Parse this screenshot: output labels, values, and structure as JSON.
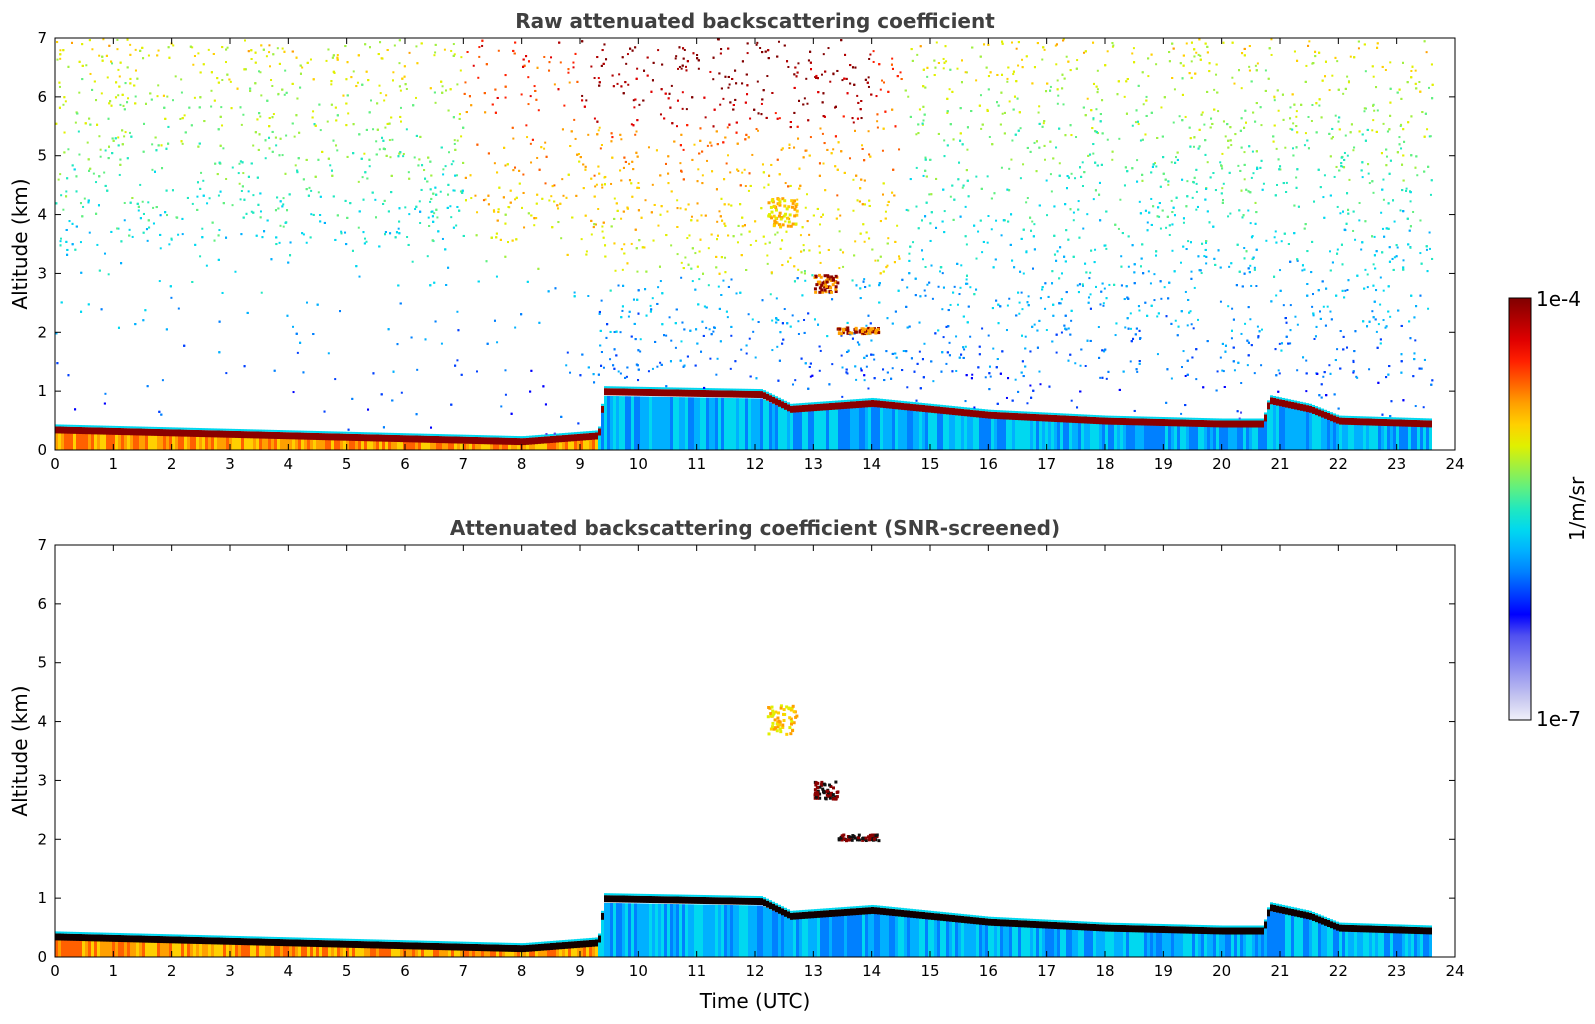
{
  "chart_data": [
    {
      "type": "heatmap",
      "title": "Raw attenuated backscattering coefficient",
      "xlabel": "",
      "ylabel": "Altitude (km)",
      "xlim": [
        0,
        24
      ],
      "ylim": [
        0,
        7
      ],
      "x_ticks": [
        "0",
        "1",
        "2",
        "3",
        "4",
        "5",
        "6",
        "7",
        "8",
        "9",
        "10",
        "11",
        "12",
        "13",
        "14",
        "15",
        "16",
        "17",
        "18",
        "19",
        "20",
        "21",
        "22",
        "23",
        "24"
      ],
      "y_ticks": [
        "0",
        "1",
        "2",
        "3",
        "4",
        "5",
        "6",
        "7"
      ],
      "data_end_hour": 23.6,
      "layers": [
        {
          "name": "boundary-layer-top",
          "points": [
            [
              0,
              0.35
            ],
            [
              2,
              0.3
            ],
            [
              4,
              0.25
            ],
            [
              6,
              0.2
            ],
            [
              8,
              0.15
            ],
            [
              9.3,
              0.25
            ],
            [
              9.4,
              1.0
            ],
            [
              12.1,
              0.95
            ],
            [
              12.6,
              0.7
            ],
            [
              14,
              0.8
            ],
            [
              16,
              0.6
            ],
            [
              18,
              0.5
            ],
            [
              20,
              0.45
            ],
            [
              20.7,
              0.45
            ],
            [
              20.8,
              0.85
            ],
            [
              21.5,
              0.7
            ],
            [
              22,
              0.5
            ],
            [
              23.6,
              0.45
            ]
          ]
        },
        {
          "name": "cloud-4km",
          "x": [
            12.2,
            12.7
          ],
          "y": [
            3.8,
            4.3
          ]
        },
        {
          "name": "cloud-3km",
          "x": [
            13.0,
            13.4
          ],
          "y": [
            2.7,
            3.0
          ]
        },
        {
          "name": "cloud-2km",
          "x": [
            13.4,
            14.1
          ],
          "y": [
            2.0,
            2.1
          ]
        }
      ]
    },
    {
      "type": "heatmap",
      "title": "Attenuated backscattering coefficient (SNR-screened)",
      "xlabel": "Time (UTC)",
      "ylabel": "Altitude (km)",
      "xlim": [
        0,
        24
      ],
      "ylim": [
        0,
        7
      ],
      "x_ticks": [
        "0",
        "1",
        "2",
        "3",
        "4",
        "5",
        "6",
        "7",
        "8",
        "9",
        "10",
        "11",
        "12",
        "13",
        "14",
        "15",
        "16",
        "17",
        "18",
        "19",
        "20",
        "21",
        "22",
        "23",
        "24"
      ],
      "y_ticks": [
        "0",
        "1",
        "2",
        "3",
        "4",
        "5",
        "6",
        "7"
      ],
      "data_end_hour": 23.6
    }
  ],
  "colorbar": {
    "label": "1/m/sr",
    "max_label": "1e-4",
    "min_label": "1e-7",
    "colors": [
      "#f0f0fa",
      "#c8c8f0",
      "#a0a0f0",
      "#7878f0",
      "#5050f0",
      "#0000ff",
      "#0040ff",
      "#0080ff",
      "#00b0ff",
      "#00d8f0",
      "#20e8c0",
      "#60f080",
      "#a0f040",
      "#e0f000",
      "#ffd000",
      "#ffa000",
      "#ff6000",
      "#ff2000",
      "#e00000",
      "#b00000",
      "#800000"
    ]
  }
}
